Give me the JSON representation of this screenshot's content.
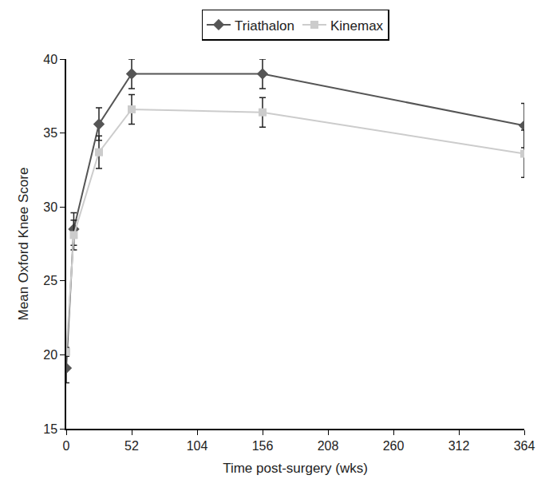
{
  "chart_data": {
    "type": "line",
    "x_label": "Time post-surgery (wks)",
    "y_label": "Mean Oxford Knee Score",
    "series": [
      {
        "name": "Triathalon",
        "color": "#555555",
        "marker": "diamond",
        "line_style": "solid",
        "x": [
          0,
          6,
          26,
          52,
          156,
          364
        ],
        "values": [
          19.1,
          28.5,
          35.6,
          39.0,
          39.0,
          35.5
        ],
        "error": [
          1.0,
          1.1,
          1.1,
          1.0,
          1.0,
          1.5
        ]
      },
      {
        "name": "Kinemax",
        "color": "#cccccc",
        "marker": "square",
        "line_style": "solid",
        "x": [
          0,
          6,
          26,
          52,
          156,
          364
        ],
        "values": [
          20.2,
          28.1,
          33.7,
          36.6,
          36.4,
          33.6
        ],
        "error": [
          0.3,
          1.0,
          1.1,
          1.0,
          1.0,
          1.6
        ]
      }
    ],
    "xlim": [
      0,
      364
    ],
    "xticks": [
      0,
      52,
      104,
      156,
      208,
      260,
      312,
      364
    ],
    "ylim": [
      15,
      40
    ],
    "yticks": [
      15,
      20,
      25,
      30,
      35,
      40
    ],
    "grid": false,
    "legend": "top"
  }
}
